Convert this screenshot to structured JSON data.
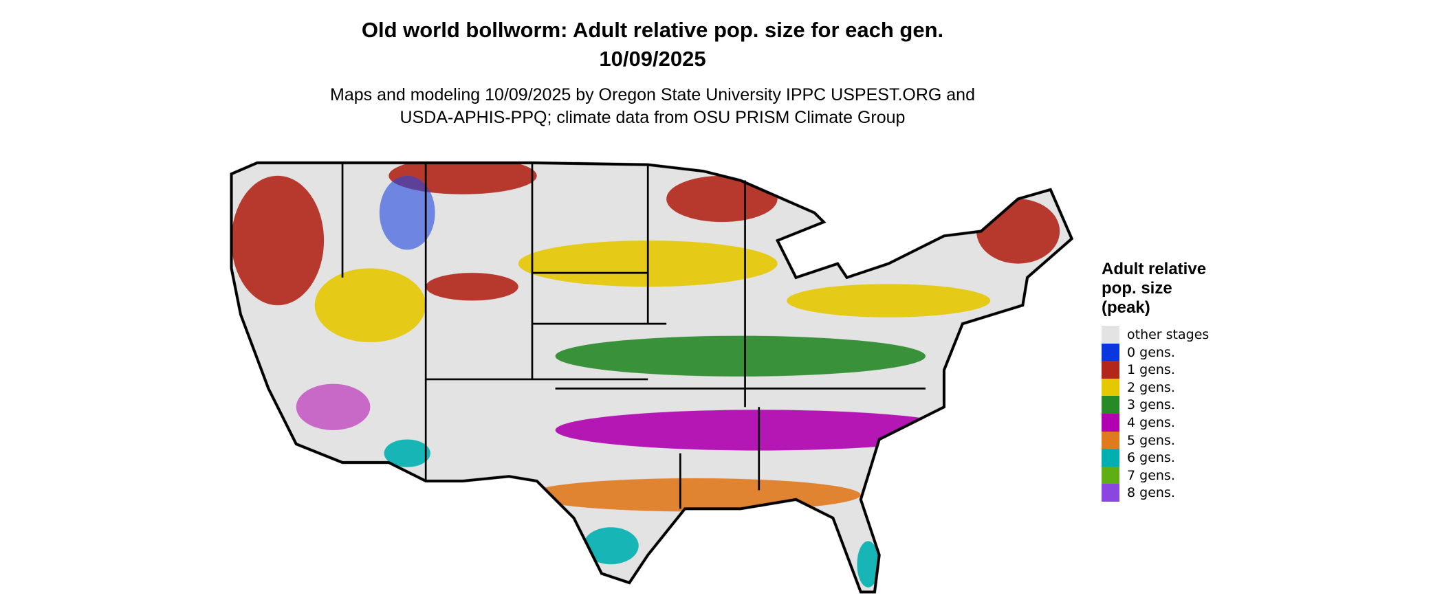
{
  "header": {
    "title": "Old world bollworm: Adult relative pop. size for each gen.",
    "date": "10/09/2025",
    "subtitle_lines": [
      "Maps and modeling 10/09/2025 by Oregon State University IPPC USPEST.ORG and",
      "USDA-APHIS-PPQ; climate data from OSU PRISM Climate Group"
    ]
  },
  "legend": {
    "title": "Adult relative pop. size (peak)",
    "items": [
      {
        "label": "other stages",
        "color": "#e3e3e3"
      },
      {
        "label": "0 gens.",
        "color": "#0a36e0"
      },
      {
        "label": "1 gens.",
        "color": "#b3261a"
      },
      {
        "label": "2 gens.",
        "color": "#e6c800"
      },
      {
        "label": "3 gens.",
        "color": "#268a26"
      },
      {
        "label": "4 gens.",
        "color": "#b000b0"
      },
      {
        "label": "5 gens.",
        "color": "#e07a1e"
      },
      {
        "label": "6 gens.",
        "color": "#00b0b0"
      },
      {
        "label": "7 gens.",
        "color": "#5fae14"
      },
      {
        "label": "8 gens.",
        "color": "#8c46e0"
      }
    ]
  }
}
